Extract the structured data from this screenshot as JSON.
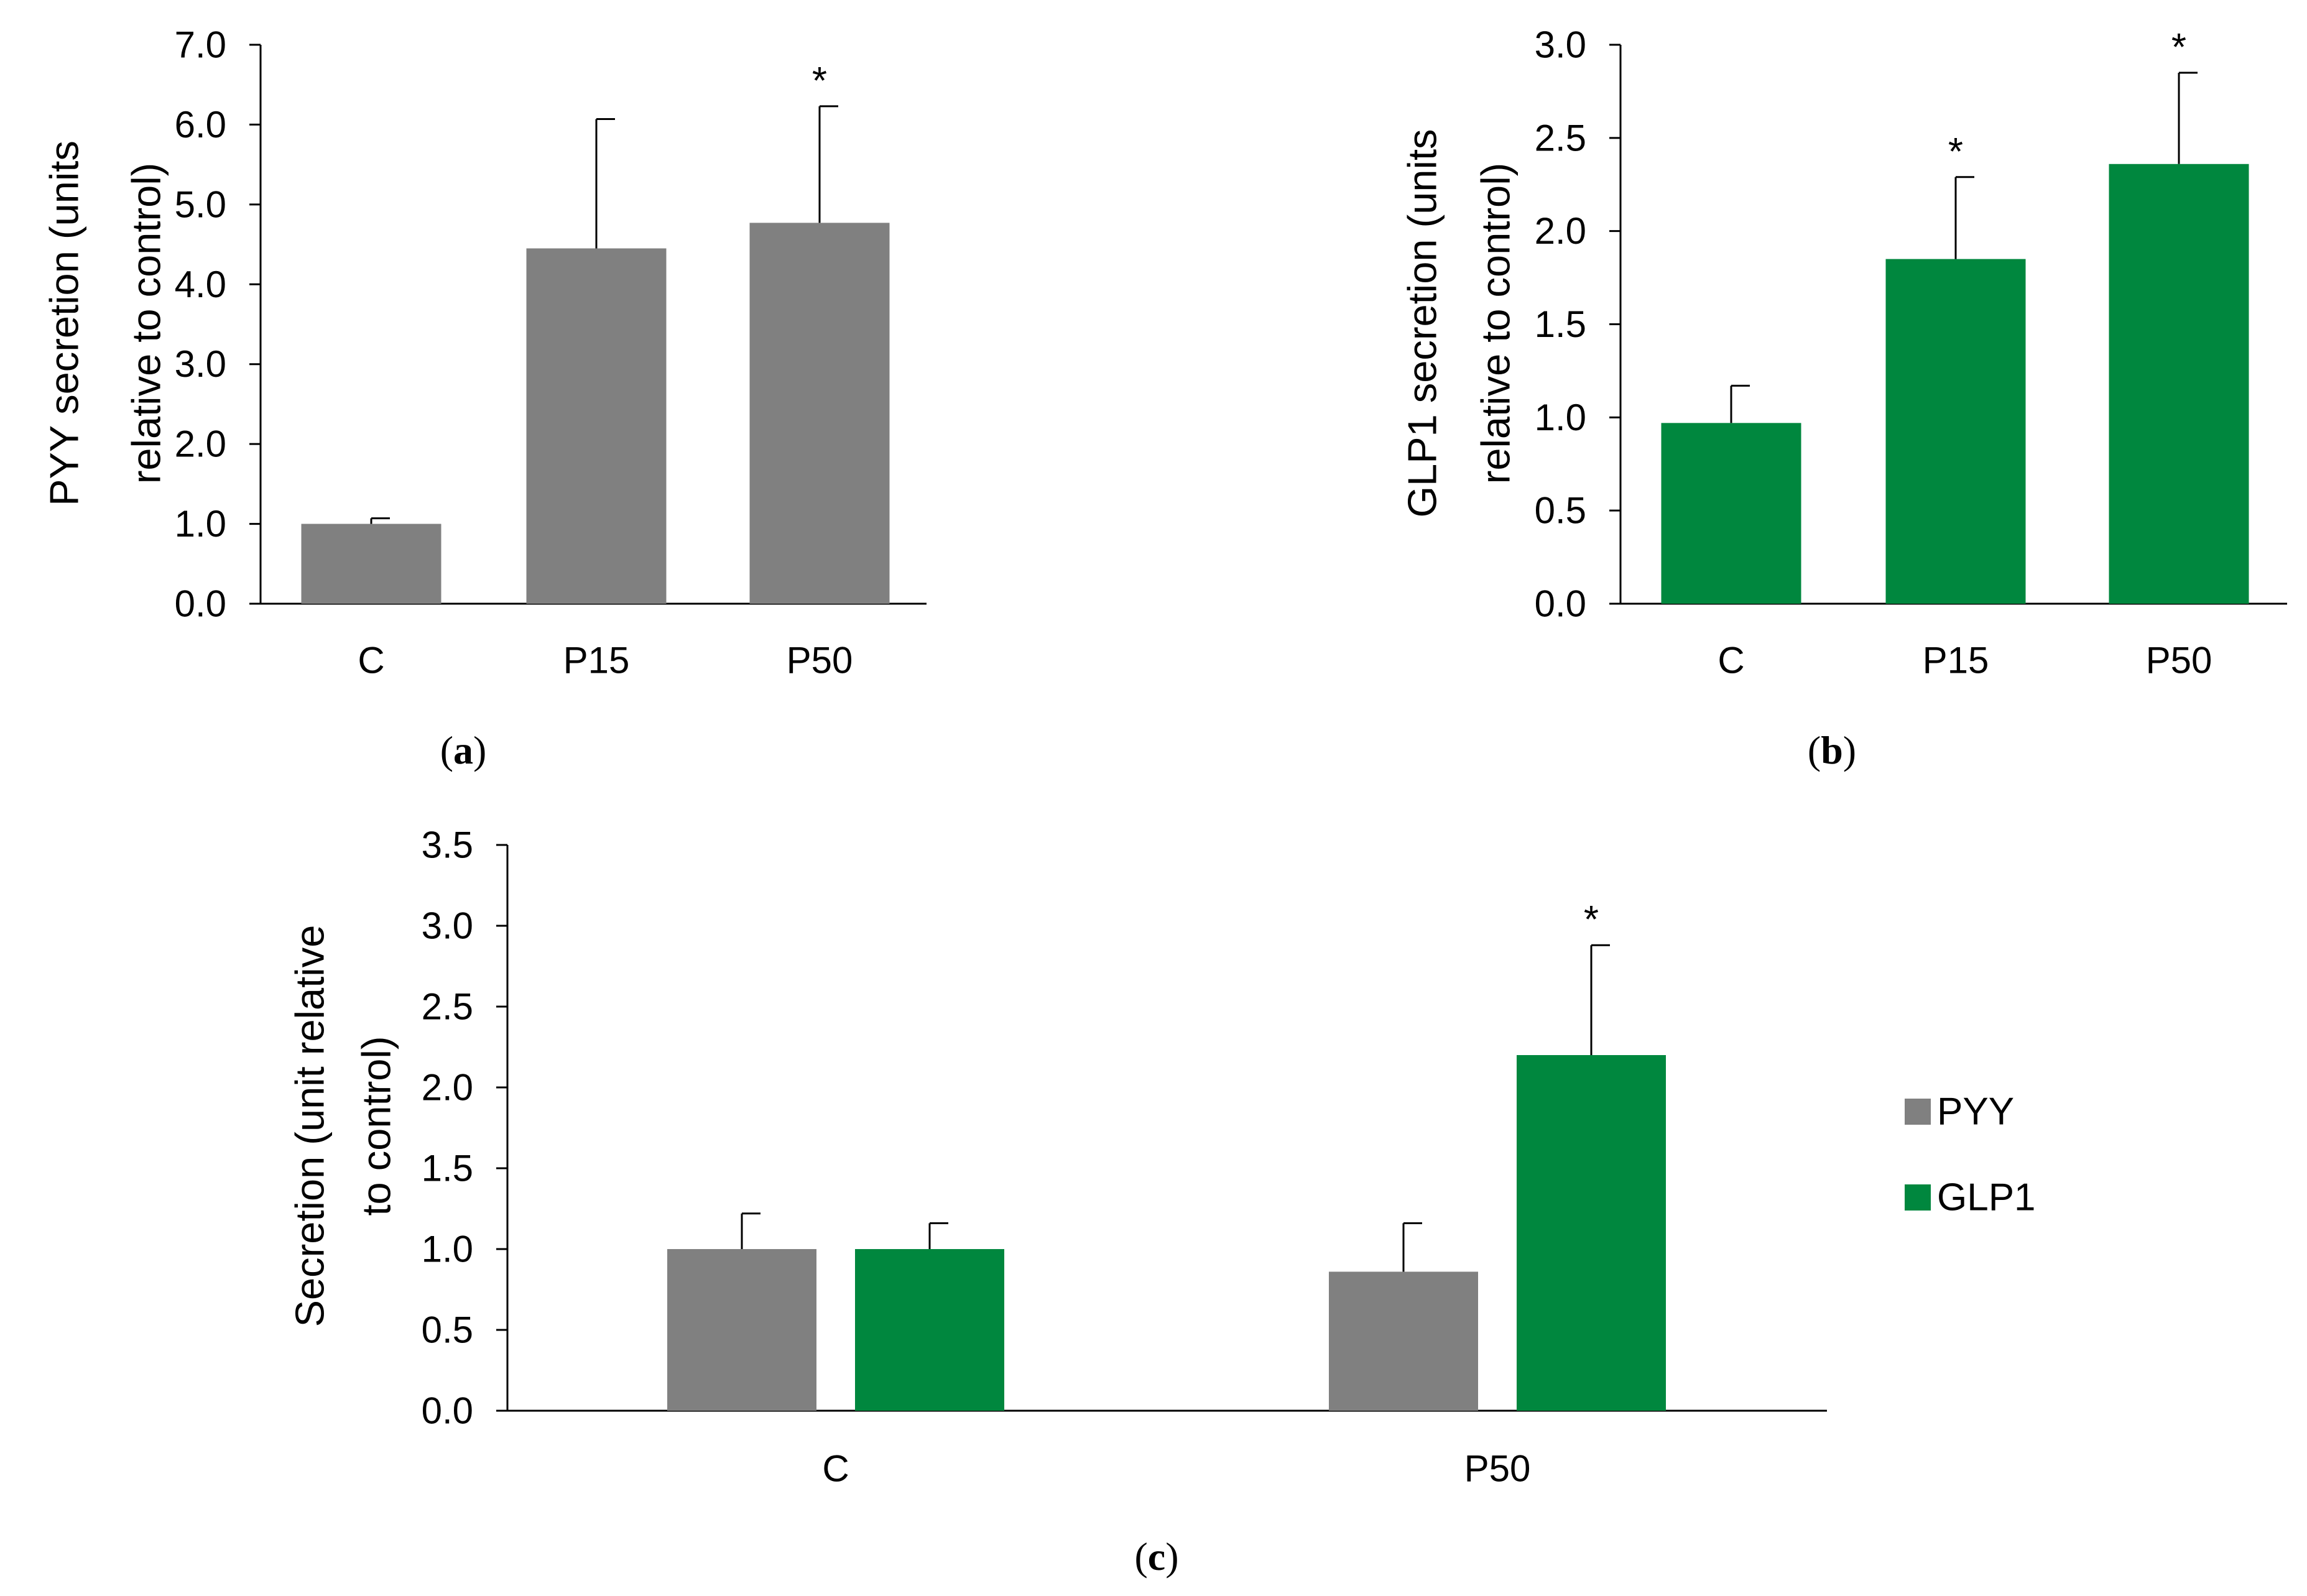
{
  "chart_data": [
    {
      "id": "a",
      "type": "bar",
      "panel_label": "(a)",
      "title": "",
      "xlabel": "",
      "ylabel_lines": [
        "PYY secretion (units",
        "relative to control)"
      ],
      "categories": [
        "C",
        "P15",
        "P50"
      ],
      "ylim": [
        0,
        7
      ],
      "yticks": [
        "0.0",
        "1.0",
        "2.0",
        "3.0",
        "4.0",
        "5.0",
        "6.0",
        "7.0"
      ],
      "grid": false,
      "series": [
        {
          "name": "PYY",
          "color": "#808080",
          "values": [
            1.0,
            4.45,
            4.77
          ],
          "errors": [
            0.07,
            1.62,
            1.46
          ],
          "significance": [
            "",
            "",
            "*"
          ]
        }
      ]
    },
    {
      "id": "b",
      "type": "bar",
      "panel_label": "(b)",
      "title": "",
      "xlabel": "",
      "ylabel_lines": [
        "GLP1 secretion (units",
        "relative to control)"
      ],
      "categories": [
        "C",
        "P15",
        "P50"
      ],
      "ylim": [
        0,
        3
      ],
      "yticks": [
        "0.0",
        "0.5",
        "1.0",
        "1.5",
        "2.0",
        "2.5",
        "3.0"
      ],
      "grid": false,
      "series": [
        {
          "name": "GLP1",
          "color": "#00873E",
          "values": [
            0.97,
            1.85,
            2.36
          ],
          "errors": [
            0.2,
            0.44,
            0.49
          ],
          "significance": [
            "",
            "*",
            "*"
          ]
        }
      ]
    },
    {
      "id": "c",
      "type": "bar",
      "panel_label": "(c)",
      "title": "",
      "xlabel": "",
      "ylabel_lines": [
        "Secretion (unit relative",
        "to control)"
      ],
      "categories": [
        "C",
        "P50"
      ],
      "ylim": [
        0,
        3.5
      ],
      "yticks": [
        "0.0",
        "0.5",
        "1.0",
        "1.5",
        "2.0",
        "2.5",
        "3.0",
        "3.5"
      ],
      "grid": false,
      "legend_position": "right",
      "series": [
        {
          "name": "PYY",
          "color": "#808080",
          "values": [
            1.0,
            0.86
          ],
          "errors": [
            0.22,
            0.3
          ],
          "significance": [
            "",
            ""
          ]
        },
        {
          "name": "GLP1",
          "color": "#00873E",
          "values": [
            1.0,
            2.2
          ],
          "errors": [
            0.16,
            0.68
          ],
          "significance": [
            "",
            "*"
          ]
        }
      ]
    }
  ]
}
